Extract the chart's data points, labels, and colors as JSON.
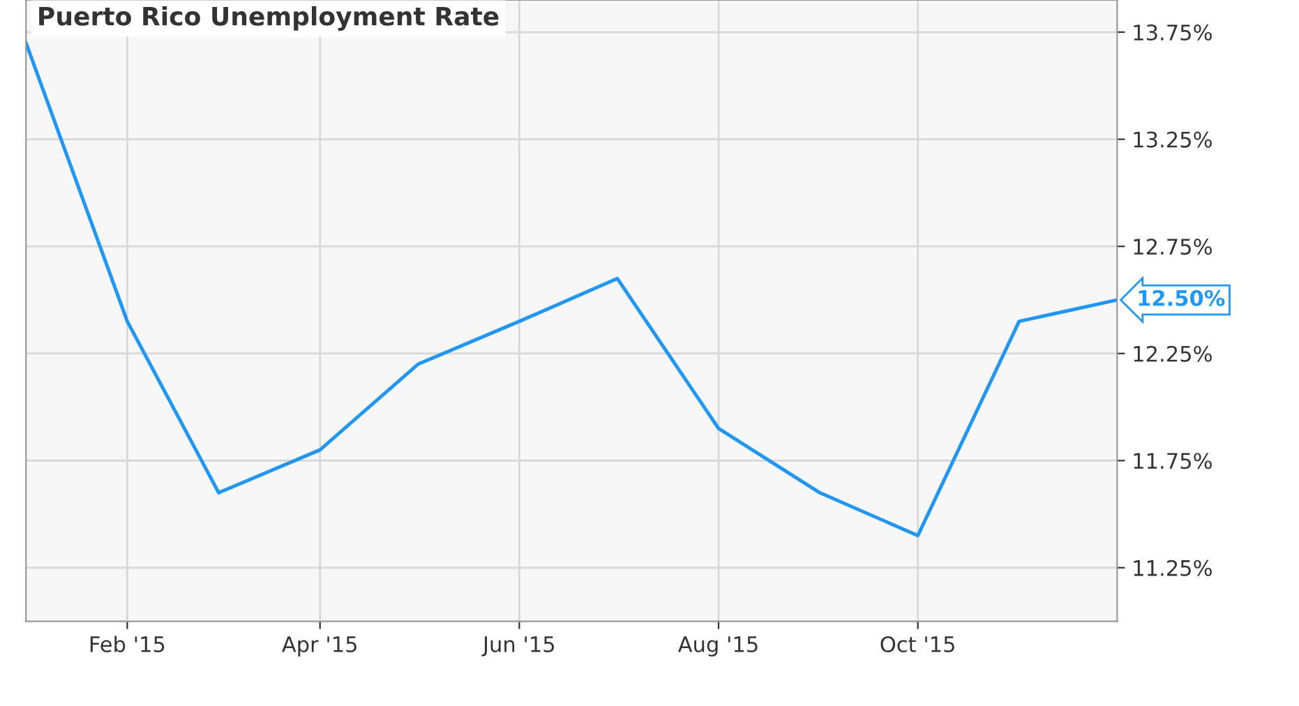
{
  "chart_data": {
    "type": "line",
    "title": "Puerto Rico Unemployment Rate",
    "x": [
      "2015-01",
      "2015-02",
      "2015-03",
      "2015-04",
      "2015-05",
      "2015-06",
      "2015-07",
      "2015-08",
      "2015-09",
      "2015-10",
      "2015-11",
      "2015-12"
    ],
    "series": [
      {
        "color": "#2196f3",
        "values": [
          13.7,
          12.4,
          11.6,
          11.8,
          12.2,
          12.4,
          12.6,
          11.9,
          11.6,
          11.4,
          12.4,
          12.5
        ]
      }
    ],
    "xlim": [
      "2015-01",
      "2015-12"
    ],
    "xticks": [
      {
        "value": "2015-02",
        "label": "Feb '15"
      },
      {
        "value": "2015-04",
        "label": "Apr '15"
      },
      {
        "value": "2015-06",
        "label": "Jun '15"
      },
      {
        "value": "2015-08",
        "label": "Aug '15"
      },
      {
        "value": "2015-10",
        "label": "Oct '15"
      }
    ],
    "ylim": [
      11.0,
      13.9
    ],
    "yticks": [
      {
        "value": 11.25,
        "label": "11.25%"
      },
      {
        "value": 11.75,
        "label": "11.75%"
      },
      {
        "value": 12.25,
        "label": "12.25%"
      },
      {
        "value": 12.75,
        "label": "12.75%"
      },
      {
        "value": 13.25,
        "label": "13.25%"
      },
      {
        "value": 13.75,
        "label": "13.75%"
      }
    ],
    "annotations": [
      {
        "text": "12.50%",
        "x": "2015-12",
        "y": 12.5
      }
    ],
    "grid": true,
    "legend": false,
    "marker": "none",
    "line_style": "solid"
  }
}
